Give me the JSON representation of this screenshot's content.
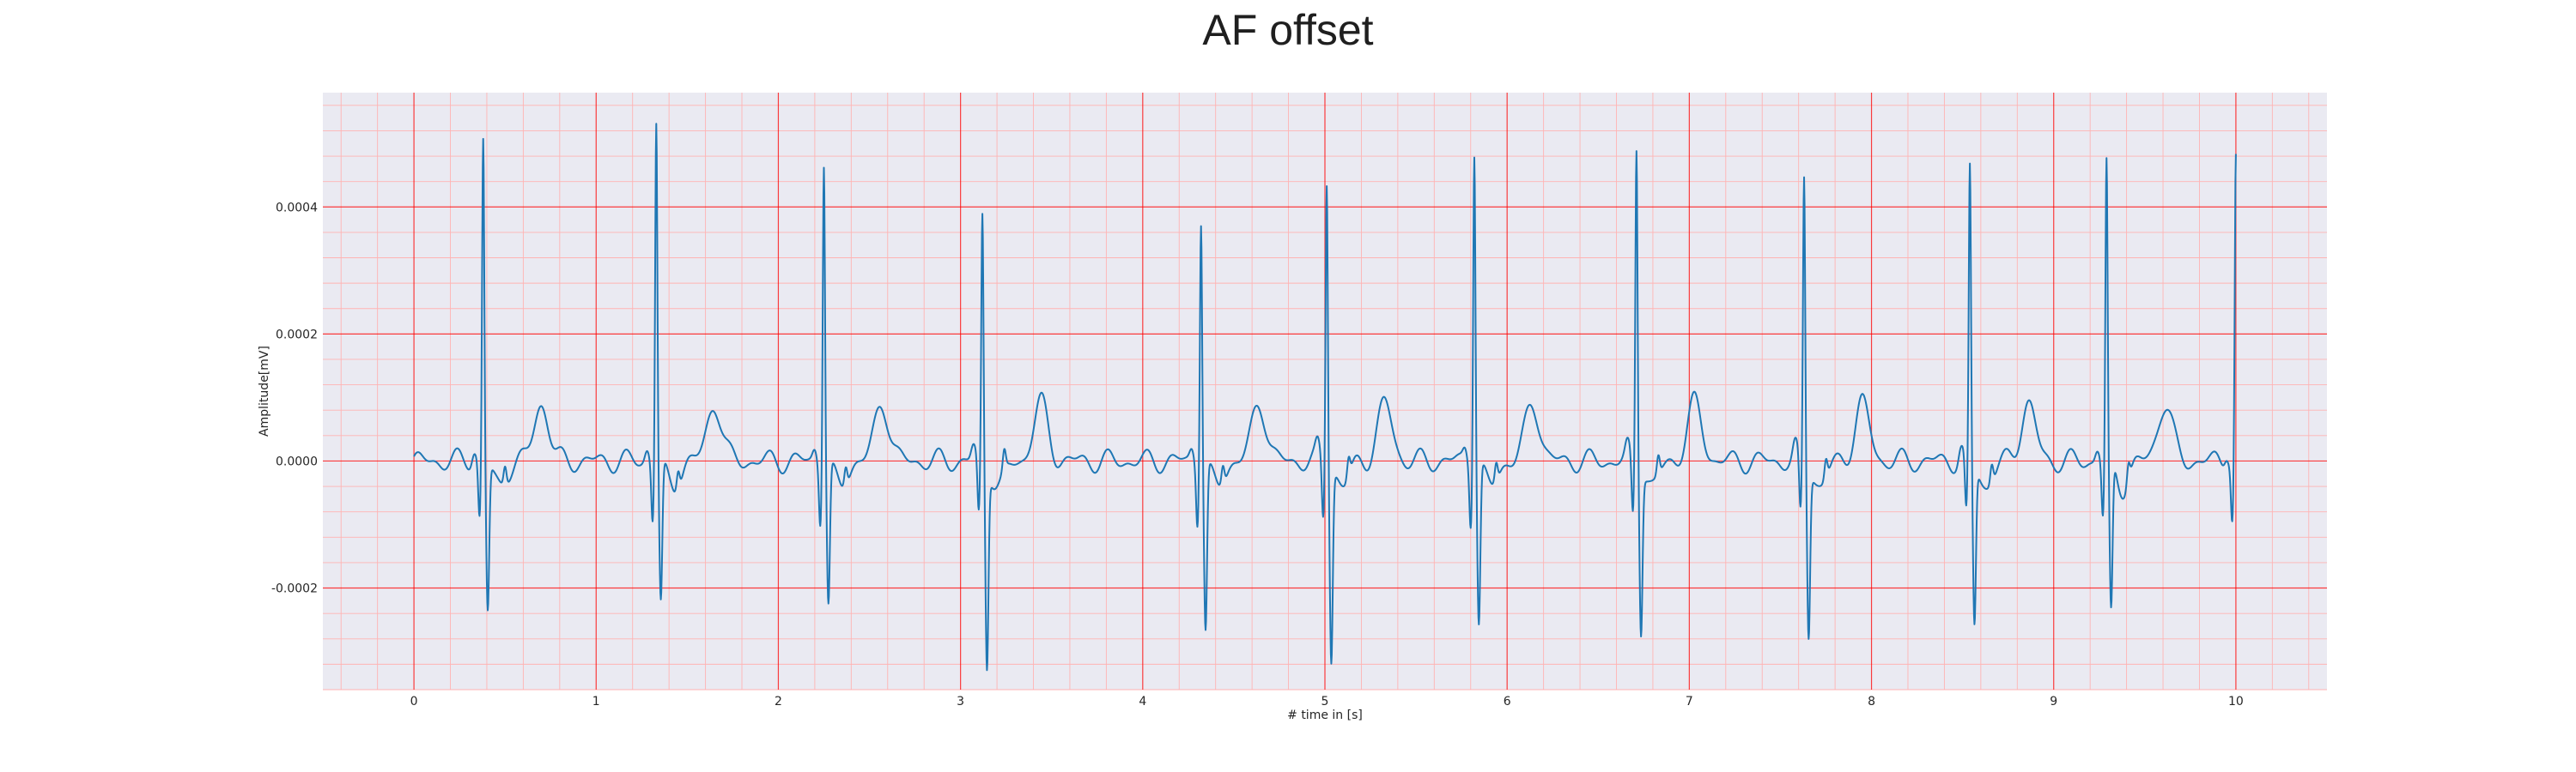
{
  "chart_data": {
    "type": "line",
    "title": "AF offset",
    "xlabel": "# time in [s]",
    "ylabel": "Amplitude[mV]",
    "xlim": [
      -0.5,
      10.5
    ],
    "ylim": [
      -0.00036,
      0.00058
    ],
    "xticks": [
      0,
      1,
      2,
      3,
      4,
      5,
      6,
      7,
      8,
      9,
      10
    ],
    "xtick_labels": [
      "0",
      "1",
      "2",
      "3",
      "4",
      "5",
      "6",
      "7",
      "8",
      "9",
      "10"
    ],
    "yticks": [
      -0.0002,
      0.0,
      0.0002,
      0.0004
    ],
    "ytick_labels": [
      "-0.0002",
      "0.0000",
      "0.0002",
      "0.0004"
    ],
    "grid": {
      "major": true,
      "minor": true,
      "major_color": "#ff0000",
      "minor_color": "#ffb3b3"
    },
    "colors": {
      "background": "#eaeaf2",
      "line": "#1f77b4"
    },
    "series": [
      {
        "beats": [
          {
            "t": 0.38,
            "r": 0.00051,
            "s": -0.00023
          },
          {
            "t": 1.33,
            "r": 0.00054,
            "s": -0.00022
          },
          {
            "t": 2.25,
            "r": 0.00048,
            "s": -0.00022
          },
          {
            "t": 3.12,
            "r": 0.00039,
            "s": -0.00031
          },
          {
            "t": 4.32,
            "r": 0.00039,
            "s": -0.00026
          },
          {
            "t": 5.01,
            "r": 0.00045,
            "s": -0.0003
          },
          {
            "t": 5.82,
            "r": 0.0005,
            "s": -0.00025
          },
          {
            "t": 6.71,
            "r": 0.0005,
            "s": -0.00025
          },
          {
            "t": 7.63,
            "r": 0.00045,
            "s": -0.00026
          },
          {
            "t": 8.54,
            "r": 0.00046,
            "s": -0.00025
          },
          {
            "t": 9.29,
            "r": 0.00047,
            "s": -0.00024
          },
          {
            "t": 10.0,
            "r": 0.00048,
            "s": -0.0001
          }
        ],
        "baseline": 0.0,
        "t_wave_amplitude": 9e-05,
        "st_depression": -4e-05
      }
    ]
  }
}
